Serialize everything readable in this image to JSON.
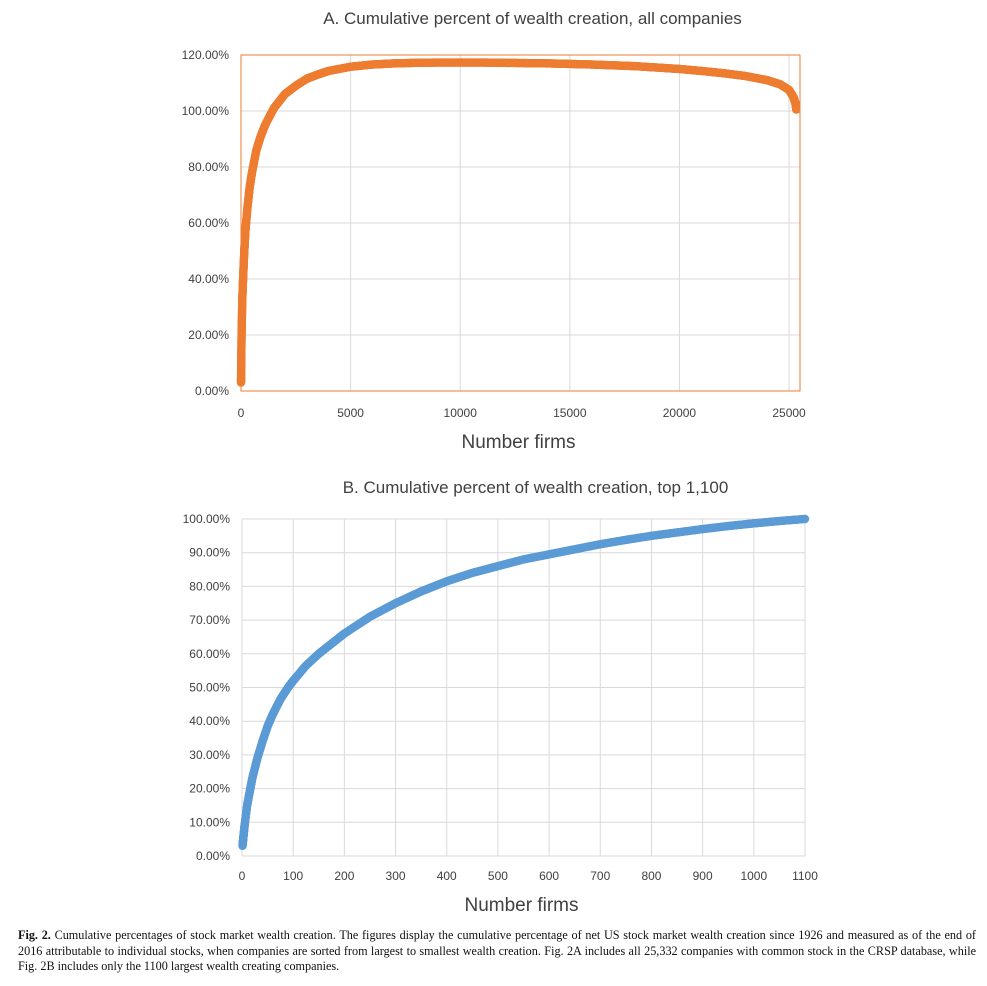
{
  "charts": [
    {
      "id": "chart-a",
      "type": "scatter",
      "title": "A. Cumulative percent of wealth creation, all companies",
      "xlabel": "Number firms",
      "ylabel": "",
      "xlim": [
        0,
        25500
      ],
      "ylim": [
        0,
        120
      ],
      "xticks": [
        "0",
        "5000",
        "10000",
        "15000",
        "20000",
        "25000"
      ],
      "xtick_values": [
        0,
        5000,
        10000,
        15000,
        20000,
        25000
      ],
      "yticks": [
        "0.00%",
        "20.00%",
        "40.00%",
        "60.00%",
        "80.00%",
        "100.00%",
        "120.00%"
      ],
      "ytick_values": [
        0,
        20,
        40,
        60,
        80,
        100,
        120
      ],
      "grid": true,
      "plot_border_color": "#ed7d31",
      "series": [
        {
          "color": "#ed7d31",
          "points": [
            [
              1,
              3
            ],
            [
              10,
              10
            ],
            [
              30,
              22
            ],
            [
              60,
              33
            ],
            [
              100,
              41
            ],
            [
              150,
              50
            ],
            [
              200,
              57
            ],
            [
              300,
              66
            ],
            [
              400,
              73
            ],
            [
              500,
              78
            ],
            [
              700,
              86
            ],
            [
              900,
              91
            ],
            [
              1100,
              95
            ],
            [
              1500,
              101
            ],
            [
              2000,
              106
            ],
            [
              2500,
              109
            ],
            [
              3000,
              111.5
            ],
            [
              3500,
              113
            ],
            [
              4000,
              114.3
            ],
            [
              5000,
              115.8
            ],
            [
              6000,
              116.6
            ],
            [
              7000,
              117
            ],
            [
              8000,
              117.2
            ],
            [
              9000,
              117.3
            ],
            [
              10000,
              117.3
            ],
            [
              11000,
              117.3
            ],
            [
              12000,
              117.2
            ],
            [
              13000,
              117.1
            ],
            [
              14000,
              117
            ],
            [
              15000,
              116.8
            ],
            [
              16000,
              116.6
            ],
            [
              17000,
              116.3
            ],
            [
              18000,
              116
            ],
            [
              19000,
              115.5
            ],
            [
              20000,
              115
            ],
            [
              21000,
              114.3
            ],
            [
              22000,
              113.5
            ],
            [
              23000,
              112.5
            ],
            [
              24000,
              111
            ],
            [
              24600,
              109.5
            ],
            [
              25000,
              107.5
            ],
            [
              25200,
              105
            ],
            [
              25300,
              102.5
            ],
            [
              25332,
              100.5
            ]
          ]
        }
      ]
    },
    {
      "id": "chart-b",
      "type": "scatter",
      "title": "B. Cumulative percent of wealth creation, top 1,100",
      "xlabel": "Number firms",
      "ylabel": "",
      "xlim": [
        0,
        1100
      ],
      "ylim": [
        0,
        100
      ],
      "xticks": [
        "0",
        "100",
        "200",
        "300",
        "400",
        "500",
        "600",
        "700",
        "800",
        "900",
        "1000",
        "1100"
      ],
      "xtick_values": [
        0,
        100,
        200,
        300,
        400,
        500,
        600,
        700,
        800,
        900,
        1000,
        1100
      ],
      "yticks": [
        "0.00%",
        "10.00%",
        "20.00%",
        "30.00%",
        "40.00%",
        "50.00%",
        "60.00%",
        "70.00%",
        "80.00%",
        "90.00%",
        "100.00%"
      ],
      "ytick_values": [
        0,
        10,
        20,
        30,
        40,
        50,
        60,
        70,
        80,
        90,
        100
      ],
      "grid": true,
      "plot_border_color": "",
      "series": [
        {
          "color": "#5b9bd5",
          "points": [
            [
              1,
              3
            ],
            [
              3,
              6
            ],
            [
              5,
              9
            ],
            [
              10,
              15
            ],
            [
              15,
              19
            ],
            [
              20,
              23
            ],
            [
              30,
              29
            ],
            [
              40,
              34
            ],
            [
              50,
              38.5
            ],
            [
              60,
              42
            ],
            [
              75,
              46.5
            ],
            [
              90,
              50
            ],
            [
              100,
              52
            ],
            [
              125,
              56.5
            ],
            [
              150,
              60
            ],
            [
              175,
              63
            ],
            [
              200,
              66
            ],
            [
              250,
              71
            ],
            [
              300,
              75
            ],
            [
              350,
              78.5
            ],
            [
              400,
              81.5
            ],
            [
              450,
              84
            ],
            [
              500,
              86
            ],
            [
              550,
              88
            ],
            [
              600,
              89.5
            ],
            [
              650,
              91
            ],
            [
              700,
              92.5
            ],
            [
              750,
              93.8
            ],
            [
              800,
              95
            ],
            [
              850,
              96
            ],
            [
              900,
              97
            ],
            [
              950,
              97.9
            ],
            [
              1000,
              98.7
            ],
            [
              1050,
              99.4
            ],
            [
              1100,
              100
            ]
          ]
        }
      ]
    }
  ],
  "caption": {
    "lead": "Fig. 2.",
    "text": " Cumulative percentages of stock market wealth creation. The figures display the cumulative percentage of net US stock market wealth creation since 1926 and measured as of the end of 2016 attributable to individual stocks, when companies are sorted from largest to smallest wealth creation. Fig. 2A includes all 25,332 companies with common stock in the CRSP database, while Fig. 2B includes only the 1100 largest wealth creating companies."
  }
}
